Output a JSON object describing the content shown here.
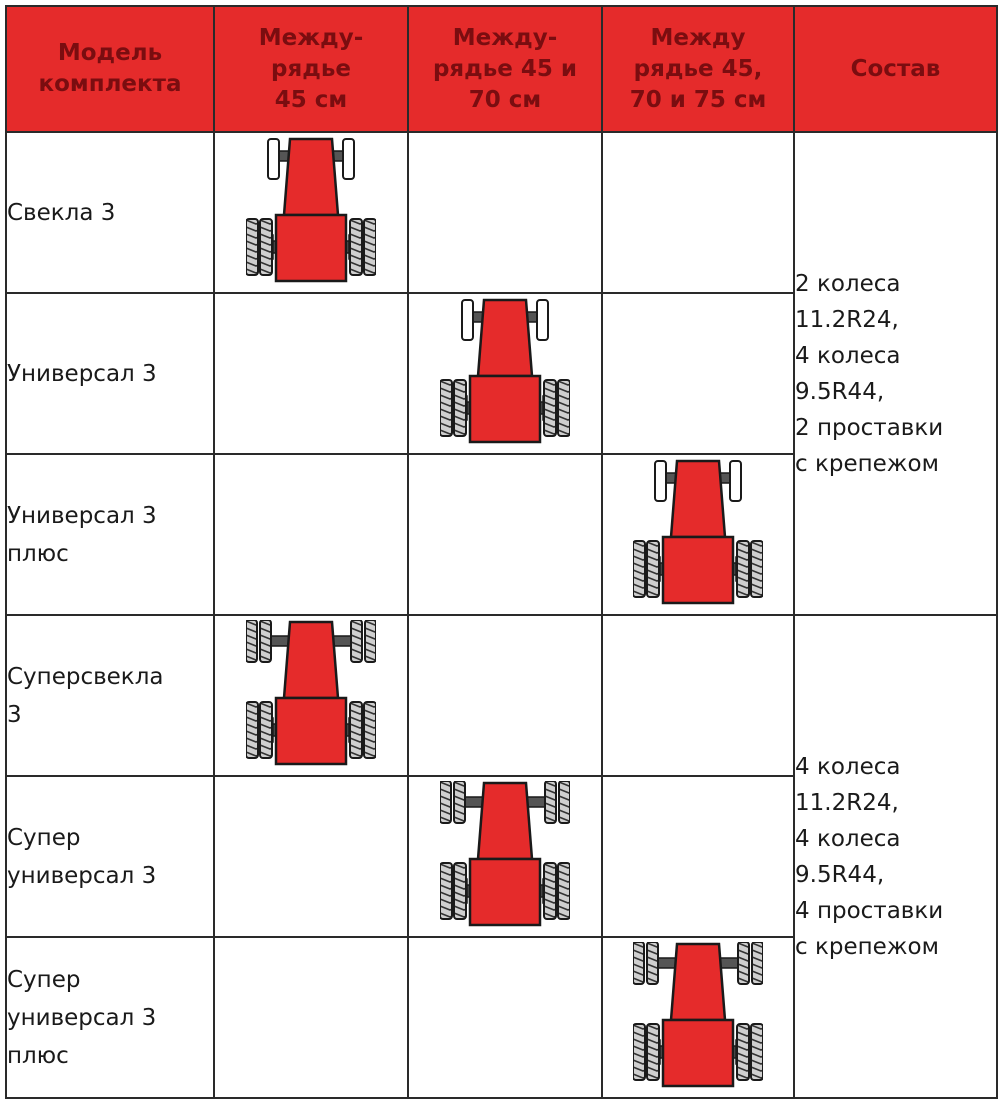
{
  "table": {
    "headers": {
      "model": "Модель\nкомплекта",
      "row45": "Между-\nрядье\n45 см",
      "row45_70": "Между-\nрядье 45 и\n70 см",
      "row45_70_75": "Между\nрядье 45,\n70 и 75 см",
      "contents": "Состав"
    },
    "rows": [
      {
        "model": "Свекла 3",
        "column": "45 см",
        "wheels": "2 front + 4 rear"
      },
      {
        "model": "Универсал 3",
        "column": "45 и 70 см",
        "wheels": "2 front + 4 rear"
      },
      {
        "model": "Универсал 3\nплюс",
        "column": "45, 70 и 75 см",
        "wheels": "2 front + 4 rear"
      },
      {
        "model": "Суперсвекла\n3",
        "column": "45 см",
        "wheels": "4 front + 4 rear"
      },
      {
        "model": "Супер\nуниверсал 3",
        "column": "45 и 70 см",
        "wheels": "4 front + 4 rear"
      },
      {
        "model": "Супер\nуниверсал 3\nплюс",
        "column": "45, 70 и 75 см",
        "wheels": "4 front + 4 rear"
      }
    ],
    "groups": [
      {
        "contents": "2 колеса\n11.2R24,\n4 колеса\n9.5R44,\n2 проставки\nс крепежом"
      },
      {
        "contents": "4 колеса\n11.2R24,\n4 колеса\n9.5R44,\n4 проставки\nс крепежом"
      }
    ]
  },
  "icons": {
    "tractor": "tractor-top-view-icon"
  },
  "colors": {
    "header_bg": "#e52b2b",
    "header_text": "#7a0d10",
    "tractor_body": "#e52b2b",
    "border": "#2a2a2a"
  }
}
